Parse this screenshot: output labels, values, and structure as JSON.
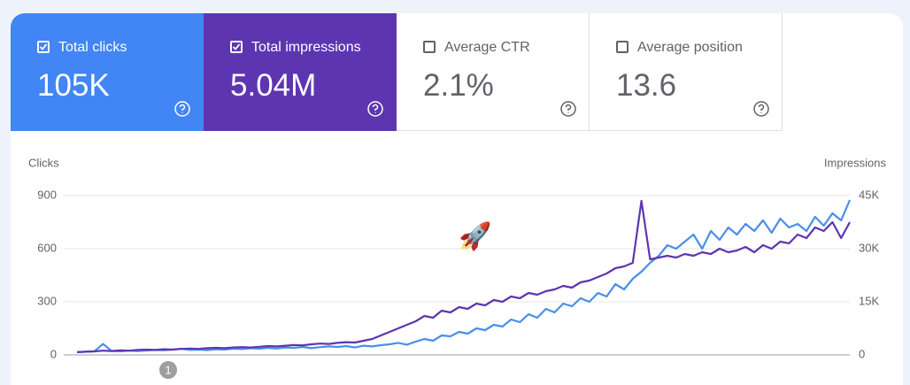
{
  "cards": [
    {
      "label": "Total clicks",
      "value": "105K",
      "checked": true,
      "color": "#4285f4"
    },
    {
      "label": "Total impressions",
      "value": "5.04M",
      "checked": true,
      "color": "#5e35b1"
    },
    {
      "label": "Average CTR",
      "value": "2.1%",
      "checked": false,
      "color": "#ffffff"
    },
    {
      "label": "Average position",
      "value": "13.6",
      "checked": false,
      "color": "#ffffff"
    }
  ],
  "chart_data": {
    "type": "line",
    "y_label": "Clicks",
    "y2_label": "Impressions",
    "ylim": [
      0,
      900
    ],
    "yticks": [
      0,
      300,
      600,
      900
    ],
    "y2lim": [
      0,
      45000
    ],
    "y2ticks": [
      0,
      {
        "value": 15000,
        "label": "15K"
      },
      {
        "value": 30000,
        "label": "30K"
      },
      {
        "value": 45000,
        "label": "45K"
      }
    ],
    "grid": true,
    "annotation": "1",
    "icon": "🚀",
    "series": [
      {
        "color": "#4a8fe8",
        "values": [
          15,
          18,
          20,
          62,
          22,
          20,
          24,
          22,
          25,
          28,
          26,
          30,
          35,
          28,
          30,
          27,
          32,
          30,
          35,
          33,
          38,
          35,
          40,
          36,
          42,
          40,
          45,
          38,
          44,
          48,
          45,
          50,
          42,
          52,
          48,
          55,
          60,
          68,
          58,
          75,
          90,
          80,
          110,
          105,
          130,
          120,
          150,
          140,
          170,
          160,
          200,
          185,
          230,
          210,
          260,
          240,
          290,
          275,
          320,
          300,
          350,
          330,
          400,
          370,
          430,
          470,
          520,
          560,
          620,
          600,
          640,
          680,
          600,
          700,
          650,
          720,
          680,
          740,
          700,
          760,
          690,
          770,
          720,
          740,
          700,
          780,
          730,
          800,
          760,
          875
        ]
      },
      {
        "color": "#5e35b1",
        "axis": "y2",
        "values": [
          800,
          900,
          1000,
          1200,
          1100,
          1300,
          1200,
          1400,
          1500,
          1400,
          1600,
          1500,
          1700,
          1800,
          1700,
          1900,
          2000,
          1900,
          2100,
          2200,
          2100,
          2300,
          2500,
          2400,
          2600,
          2800,
          2700,
          3000,
          3200,
          3100,
          3400,
          3600,
          3500,
          4000,
          4500,
          5500,
          6500,
          7500,
          8500,
          9500,
          11000,
          10500,
          12500,
          12000,
          13500,
          13000,
          14500,
          14000,
          15500,
          15000,
          16500,
          16000,
          17500,
          17000,
          18000,
          18500,
          19500,
          19000,
          20500,
          21000,
          22000,
          23000,
          24500,
          25000,
          26000,
          43500,
          27000,
          27500,
          28000,
          27500,
          28500,
          28000,
          29000,
          28500,
          30000,
          29000,
          29500,
          30500,
          29000,
          31000,
          30000,
          32000,
          31500,
          34000,
          33000,
          36000,
          35000,
          37500,
          33000,
          37500
        ]
      }
    ]
  }
}
